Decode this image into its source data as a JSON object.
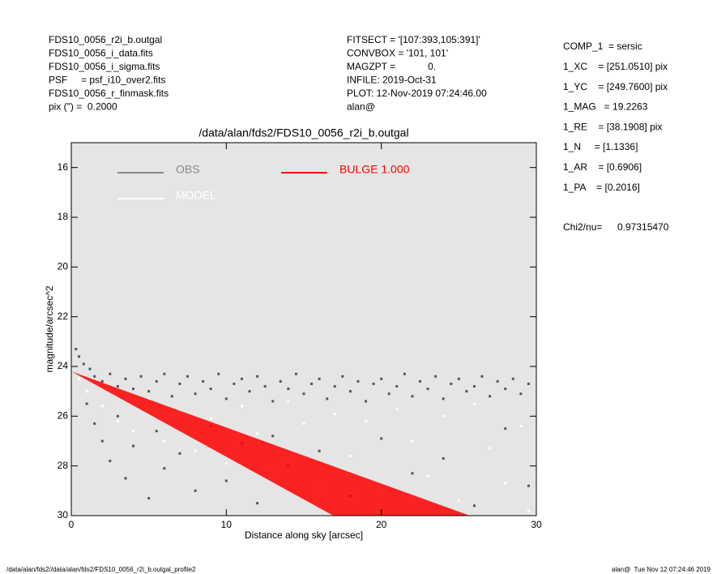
{
  "header": {
    "left": [
      "FDS10_0056_r2i_b.outgal",
      "FDS10_0056_i_data.fits",
      "FDS10_0056_i_sigma.fits",
      "PSF     = psf_i10_over2.fits",
      "FDS10_0056_r_finmask.fits",
      "pix (\") =  0.2000"
    ],
    "middle": [
      "FITSECT = '[107:393,105:391]'",
      "CONVBOX = '101, 101'",
      "MAGZPT =            0.",
      "INFILE: 2019-Oct-31",
      "PLOT: 12-Nov-2019 07:24:46.00",
      "alan@"
    ],
    "right": [
      "COMP_1  = sersic",
      "1_XC    = [251.0510] pix",
      "1_YC    = [249.7600] pix",
      "1_MAG   = 19.2263",
      "1_RE    = [38.1908] pix",
      "1_N     = [1.1336]",
      "1_AR    = [0.6906]",
      "1_PA    = [0.2016]"
    ],
    "chi_label": "Chi2/nu=",
    "chi_value": "0.97315470"
  },
  "footer": {
    "left": "/data/alan/fds2//data/alan/fds2/FDS10_0056_r2i_b.outgal_profile2",
    "right": "alan@  Tue Nov 12 07:24:46 2019"
  },
  "chart_data": {
    "type": "scatter",
    "title": "/data/alan/fds2/FDS10_0056_r2i_b.outgal",
    "x_label": "Distance along sky [arcsec]",
    "y_label": "magnitude/arcsec^2",
    "xlim": [
      0,
      30
    ],
    "ylim": [
      15,
      30
    ],
    "y_inverted": true,
    "xticks": [
      0,
      10,
      20,
      30
    ],
    "yticks": [
      16,
      18,
      20,
      22,
      24,
      26,
      28,
      30
    ],
    "background": "#e5e5e5",
    "series": [
      {
        "name": "OBS",
        "color": "#555555",
        "x": [
          0.3,
          0.5,
          0.8,
          1.2,
          1.5,
          2,
          2.5,
          3,
          3.5,
          4,
          4.5,
          5,
          5.5,
          6,
          6.5,
          7,
          7.5,
          8,
          8.5,
          9,
          9.5,
          10,
          10.5,
          11,
          11.5,
          12,
          12.5,
          13,
          13.5,
          14,
          14.5,
          15,
          15.5,
          16,
          16.5,
          17,
          17.5,
          18,
          18.5,
          19,
          19.5,
          20,
          20.5,
          21,
          21.5,
          22,
          22.5,
          23,
          23.5,
          24,
          24.5,
          25,
          25.5,
          26,
          26.5,
          27,
          27.5,
          28,
          28.5,
          29,
          29.5,
          1,
          1.5,
          2,
          2.5,
          3,
          3.5,
          4,
          5,
          5.5,
          6,
          7,
          8,
          9,
          10,
          11,
          12,
          13,
          14,
          16,
          18,
          20,
          22,
          24,
          26,
          28,
          29.5
        ],
        "values": [
          23.3,
          23.6,
          23.9,
          24.1,
          24.4,
          24.6,
          24.3,
          24.8,
          24.5,
          24.9,
          24.4,
          25.0,
          24.6,
          24.3,
          25.2,
          24.7,
          24.4,
          25.1,
          24.6,
          24.9,
          24.3,
          25.3,
          24.7,
          24.5,
          25.0,
          24.4,
          24.8,
          25.4,
          24.6,
          24.9,
          24.3,
          25.1,
          24.7,
          24.5,
          25.3,
          24.8,
          24.4,
          25.0,
          24.6,
          25.4,
          24.7,
          24.5,
          25.1,
          24.8,
          24.3,
          25.2,
          24.6,
          24.9,
          24.4,
          25.3,
          24.7,
          24.5,
          25.0,
          24.8,
          24.4,
          25.2,
          24.6,
          24.9,
          24.5,
          25.1,
          24.7,
          25.5,
          26.3,
          27.0,
          27.8,
          26.0,
          28.5,
          27.2,
          29.3,
          26.6,
          28.1,
          27.5,
          29.0,
          26.4,
          28.6,
          27.1,
          29.5,
          26.8,
          28.0,
          27.4,
          29.2,
          26.9,
          28.3,
          27.7,
          29.6,
          26.5,
          28.8
        ]
      },
      {
        "name": "MODEL",
        "color": "#ffffff",
        "x": [
          0.5,
          1,
          2,
          3,
          4,
          5,
          6,
          7,
          8,
          9,
          10,
          11,
          12,
          13,
          14,
          15,
          16,
          17,
          18,
          19,
          20,
          21,
          22,
          23,
          24,
          25,
          26,
          27,
          28,
          29,
          29.5
        ],
        "values": [
          24.5,
          25.0,
          25.6,
          26.2,
          26.6,
          25.3,
          27.0,
          25.8,
          27.4,
          26.1,
          27.9,
          25.6,
          26.7,
          28.2,
          25.4,
          26.3,
          28.9,
          25.9,
          27.6,
          26.2,
          29.1,
          25.7,
          27.0,
          28.4,
          26.0,
          29.4,
          25.5,
          27.3,
          28.7,
          26.4,
          29.8
        ]
      },
      {
        "name": "BULGE 1.000",
        "color": "#ff0000",
        "edges": [
          {
            "x": [
              0,
              25.7
            ],
            "values": [
              24.2,
              30
            ]
          },
          {
            "x": [
              0,
              16.9
            ],
            "values": [
              24.2,
              30
            ]
          }
        ]
      }
    ]
  }
}
